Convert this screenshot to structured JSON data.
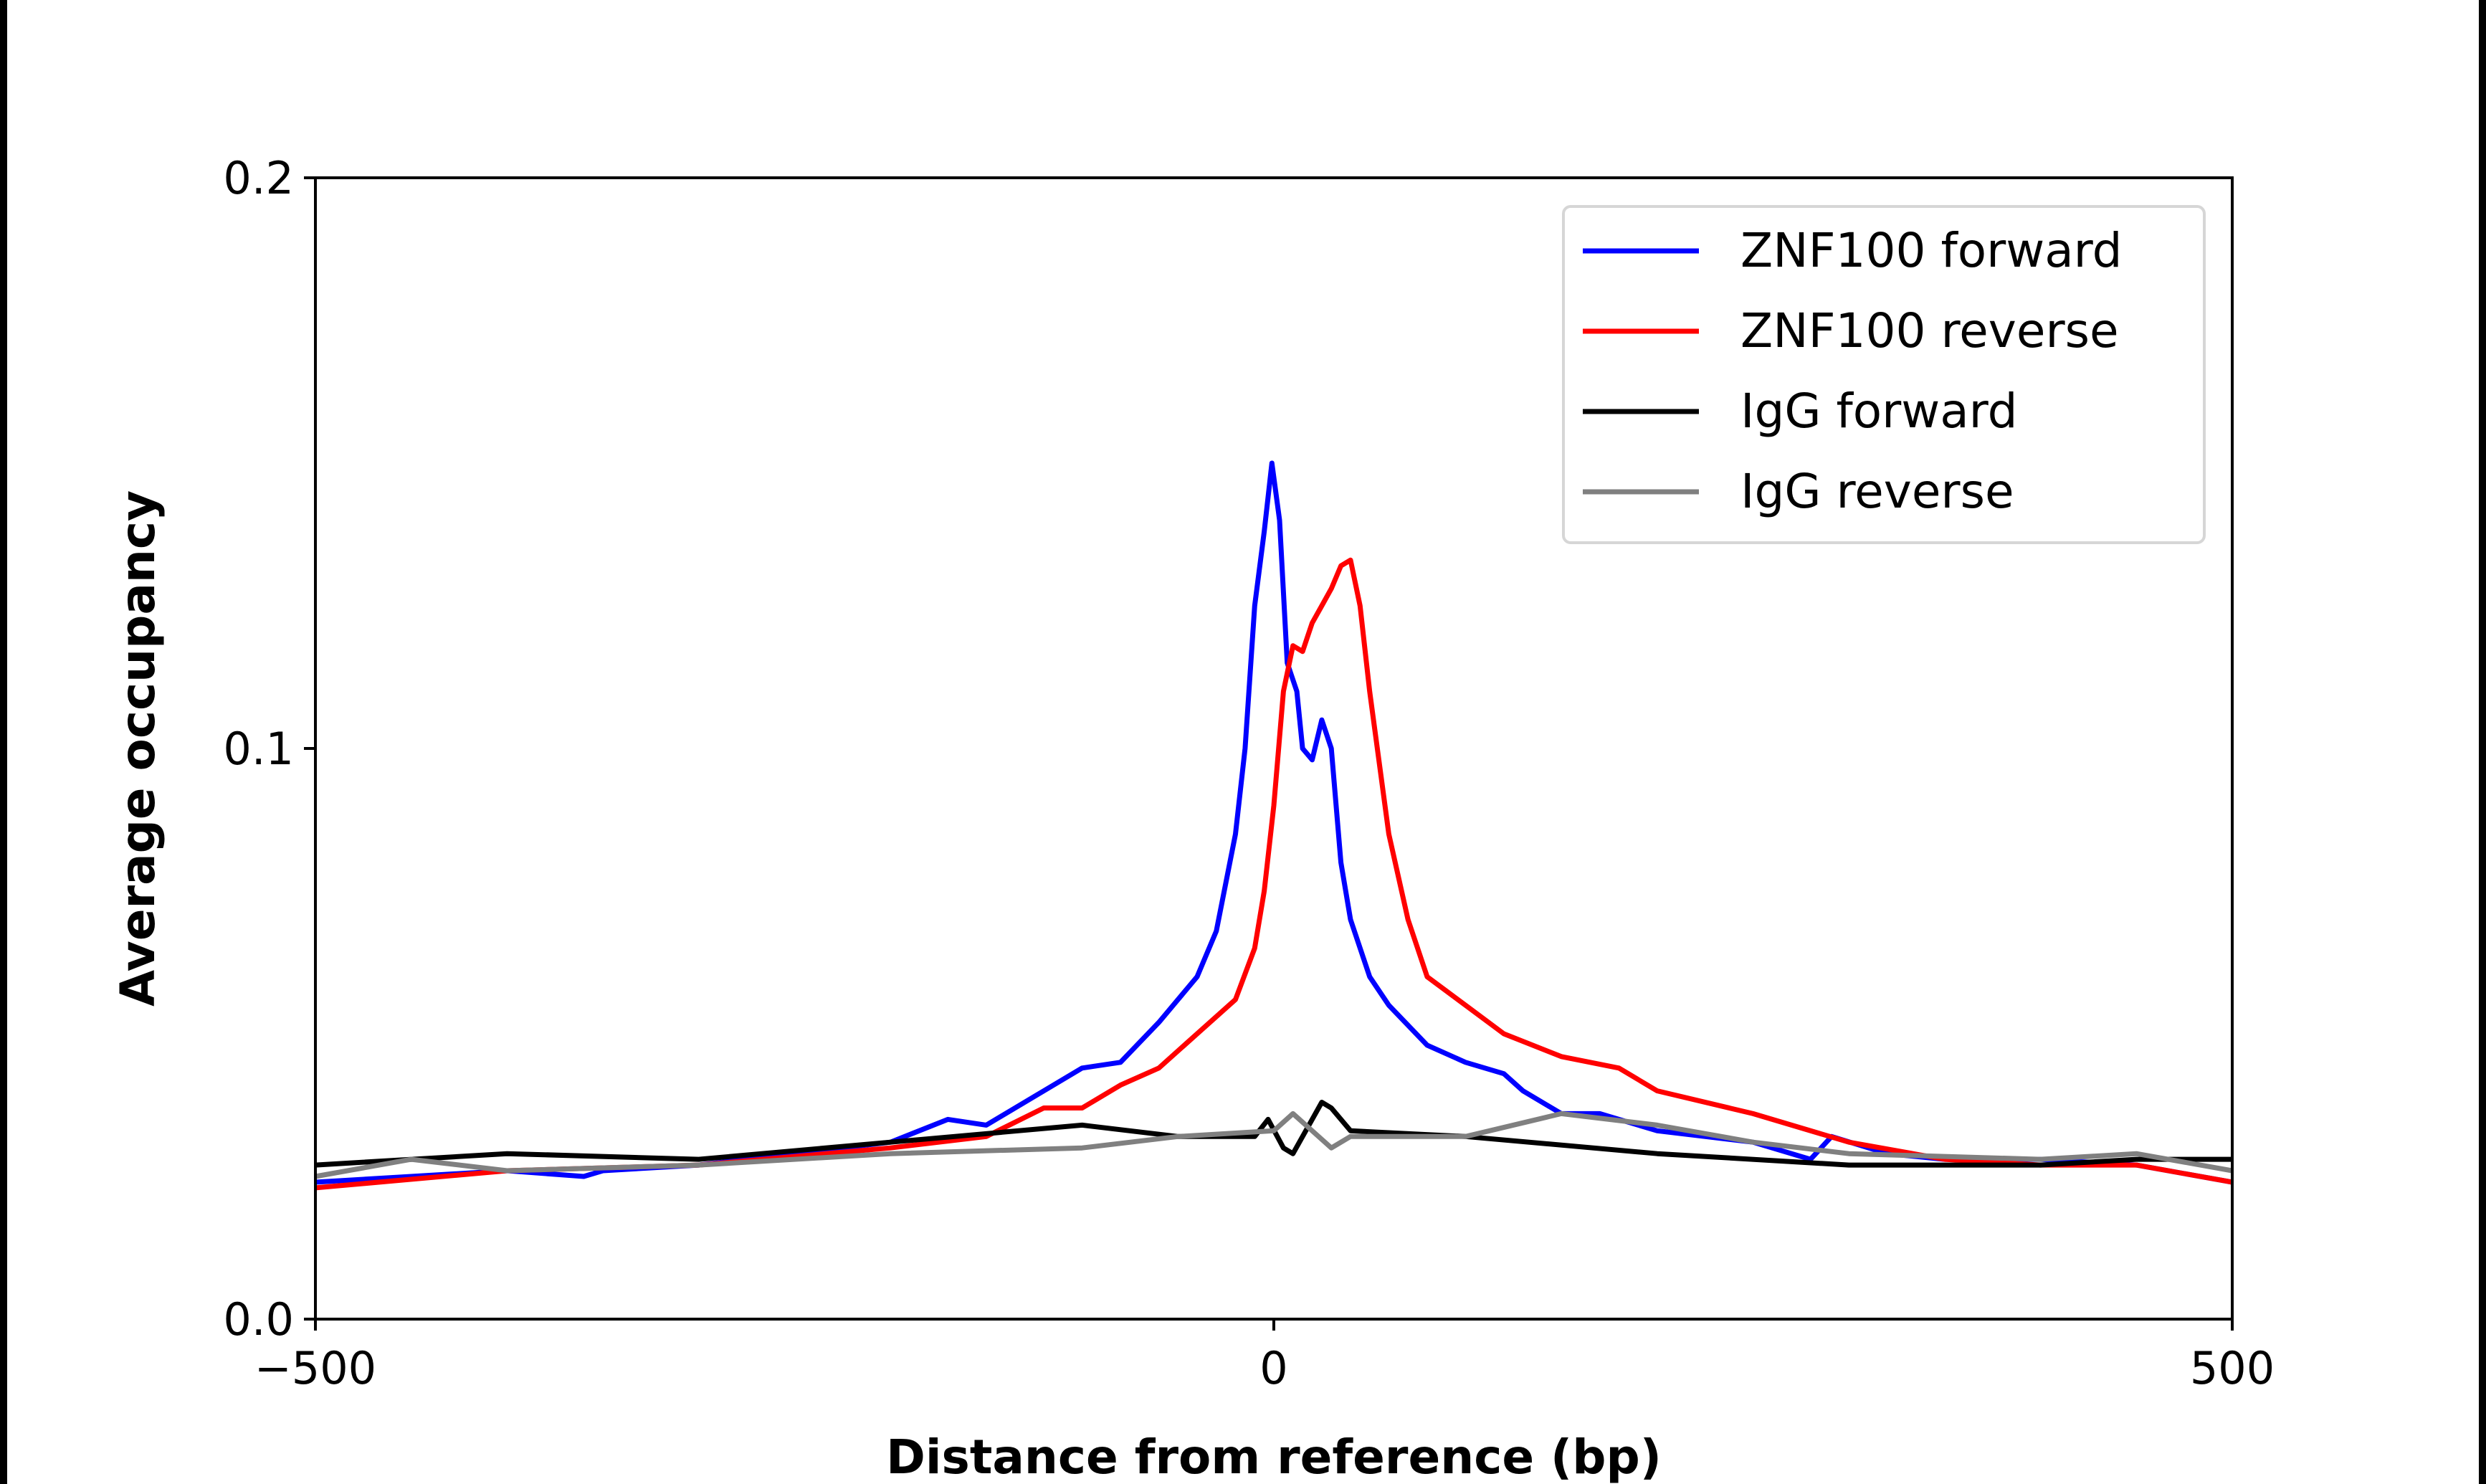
{
  "chart_data": {
    "type": "line",
    "title": "",
    "xlabel": "Distance from reference (bp)",
    "ylabel": "Average occupancy",
    "xlim": [
      -500,
      500
    ],
    "ylim": [
      0.0,
      0.2
    ],
    "xticks": [
      -500,
      0,
      500
    ],
    "xtick_labels": [
      "−500",
      "0",
      "500"
    ],
    "yticks": [
      0.0,
      0.1,
      0.2
    ],
    "ytick_labels": [
      "0.0",
      "0.1",
      "0.2"
    ],
    "grid": false,
    "legend_position": "top-right",
    "series": [
      {
        "name": "ZNF100 forward",
        "color": "#0000ff",
        "x": [
          -500,
          -450,
          -400,
          -360,
          -350,
          -300,
          -250,
          -200,
          -170,
          -150,
          -120,
          -100,
          -80,
          -60,
          -40,
          -30,
          -20,
          -15,
          -10,
          -5,
          -1,
          3,
          7,
          12,
          15,
          20,
          25,
          30,
          35,
          40,
          50,
          60,
          80,
          100,
          120,
          130,
          150,
          170,
          200,
          250,
          280,
          291,
          320,
          350,
          400,
          450,
          500
        ],
        "y": [
          0.024,
          0.025,
          0.026,
          0.025,
          0.026,
          0.027,
          0.029,
          0.031,
          0.035,
          0.034,
          0.04,
          0.044,
          0.045,
          0.052,
          0.06,
          0.068,
          0.085,
          0.1,
          0.125,
          0.138,
          0.15,
          0.14,
          0.115,
          0.11,
          0.1,
          0.098,
          0.105,
          0.1,
          0.08,
          0.07,
          0.06,
          0.055,
          0.048,
          0.045,
          0.043,
          0.04,
          0.036,
          0.036,
          0.033,
          0.031,
          0.028,
          0.032,
          0.029,
          0.028,
          0.028,
          0.027,
          0.024
        ]
      },
      {
        "name": "ZNF100 reverse",
        "color": "#ff0000",
        "x": [
          -500,
          -400,
          -300,
          -200,
          -150,
          -120,
          -100,
          -80,
          -60,
          -40,
          -20,
          -10,
          -5,
          0,
          5,
          10,
          15,
          20,
          25,
          30,
          35,
          40,
          45,
          50,
          60,
          70,
          80,
          100,
          120,
          150,
          180,
          200,
          250,
          300,
          350,
          400,
          450,
          500
        ],
        "y": [
          0.023,
          0.026,
          0.027,
          0.03,
          0.032,
          0.037,
          0.037,
          0.041,
          0.044,
          0.05,
          0.056,
          0.065,
          0.075,
          0.09,
          0.11,
          0.118,
          0.117,
          0.122,
          0.125,
          0.128,
          0.132,
          0.133,
          0.125,
          0.11,
          0.085,
          0.07,
          0.06,
          0.055,
          0.05,
          0.046,
          0.044,
          0.04,
          0.036,
          0.031,
          0.028,
          0.027,
          0.027,
          0.024
        ]
      },
      {
        "name": "IgG forward",
        "color": "#000000",
        "x": [
          -500,
          -400,
          -300,
          -200,
          -100,
          -50,
          -10,
          -3,
          5,
          10,
          20,
          25,
          30,
          40,
          100,
          200,
          300,
          400,
          450,
          500
        ],
        "y": [
          0.027,
          0.029,
          0.028,
          0.031,
          0.034,
          0.032,
          0.032,
          0.035,
          0.03,
          0.029,
          0.035,
          0.038,
          0.037,
          0.033,
          0.032,
          0.029,
          0.027,
          0.027,
          0.028,
          0.028
        ]
      },
      {
        "name": "IgG reverse",
        "color": "#808080",
        "x": [
          -500,
          -450,
          -400,
          -300,
          -200,
          -100,
          -50,
          0,
          10,
          20,
          30,
          40,
          100,
          150,
          200,
          250,
          300,
          400,
          450,
          500
        ],
        "y": [
          0.025,
          0.028,
          0.026,
          0.027,
          0.029,
          0.03,
          0.032,
          0.033,
          0.036,
          0.033,
          0.03,
          0.032,
          0.032,
          0.036,
          0.034,
          0.031,
          0.029,
          0.028,
          0.029,
          0.026
        ]
      }
    ]
  }
}
